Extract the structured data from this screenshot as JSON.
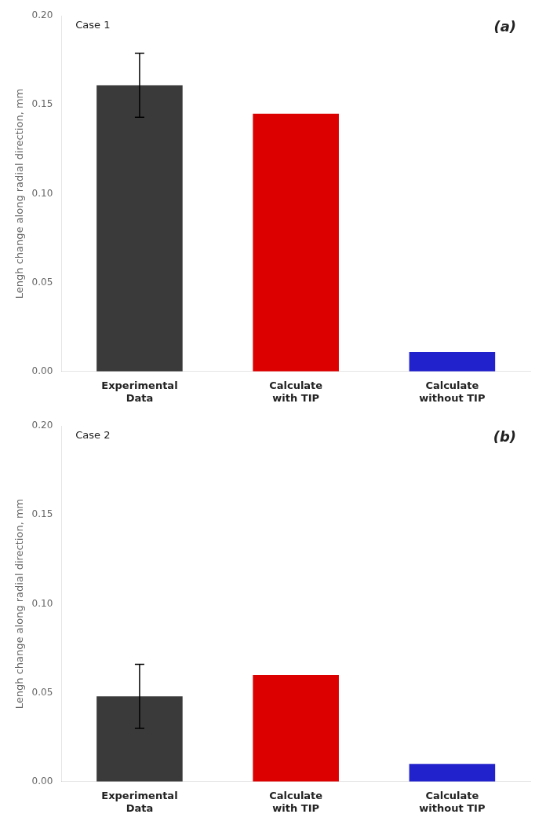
{
  "chart_data": [
    {
      "type": "bar",
      "annotations": [
        "Case 1",
        "(a)"
      ],
      "categories": [
        "Experimental\nData",
        "Calculate\nwith TIP",
        "Calculate\nwithout TIP"
      ],
      "values": [
        0.161,
        0.145,
        0.011
      ],
      "colors": [
        "#3a3a3a",
        "#dd0000",
        "#2222cc"
      ],
      "error_bar": [
        0.018,
        0,
        0
      ],
      "ylim": [
        0,
        0.2
      ],
      "yticks": [
        {
          "value": 0,
          "label": "0.00"
        },
        0.05,
        {
          "value": 0.1,
          "label": "0.10"
        },
        0.15,
        {
          "value": 0.2,
          "label": "0.20"
        }
      ],
      "ylabel": "Lengh change along radial direction, mm",
      "grid": false
    },
    {
      "type": "bar",
      "annotations": [
        "Case 2",
        "(b)"
      ],
      "categories": [
        "Experimental\nData",
        "Calculate\nwith TIP",
        "Calculate\nwithout TIP"
      ],
      "values": [
        0.048,
        0.06,
        0.01
      ],
      "colors": [
        "#3a3a3a",
        "#dd0000",
        "#2222cc"
      ],
      "error_bar": [
        0.018,
        0,
        0
      ],
      "ylim": [
        0,
        0.2
      ],
      "yticks": [
        {
          "value": 0,
          "label": "0.00"
        },
        0.05,
        {
          "value": 0.1,
          "label": "0.10"
        },
        0.15,
        {
          "value": 0.2,
          "label": "0.20"
        }
      ],
      "ylabel": "Lengh change along radial direction, mm",
      "grid": false
    }
  ]
}
